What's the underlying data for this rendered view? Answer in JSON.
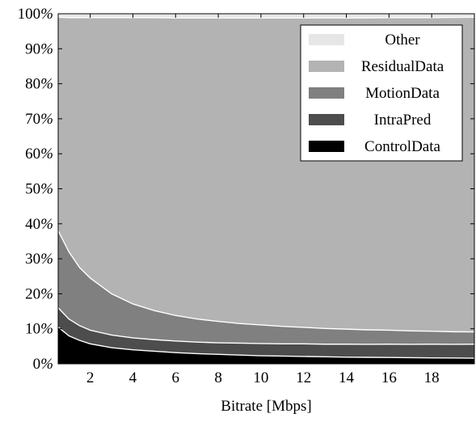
{
  "chart_data": {
    "type": "area",
    "stacked": true,
    "normalized_percent": true,
    "title": "",
    "xlabel": "Bitrate [Mbps]",
    "ylabel": "",
    "xlim": [
      0.5,
      20
    ],
    "ylim": [
      0,
      100
    ],
    "x_ticks": [
      2,
      4,
      6,
      8,
      10,
      12,
      14,
      16,
      18
    ],
    "y_ticks": [
      0,
      10,
      20,
      30,
      40,
      50,
      60,
      70,
      80,
      90,
      100
    ],
    "y_tick_suffix": "%",
    "grid": false,
    "legend_position": "top-right",
    "x": [
      0.5,
      1,
      1.5,
      2,
      3,
      4,
      5,
      6,
      7,
      8,
      9,
      10,
      11,
      12,
      13,
      14,
      15,
      16,
      17,
      18,
      19,
      20
    ],
    "series": [
      {
        "name": "ControlData",
        "color": "#000000",
        "values": [
          10.5,
          8.0,
          6.7,
          5.7,
          4.6,
          4.0,
          3.6,
          3.2,
          2.9,
          2.7,
          2.5,
          2.3,
          2.2,
          2.1,
          2.0,
          1.9,
          1.85,
          1.8,
          1.75,
          1.7,
          1.65,
          1.6
        ]
      },
      {
        "name": "IntraPred",
        "color": "#4d4d4d",
        "values": [
          5.5,
          4.8,
          4.2,
          3.9,
          3.6,
          3.4,
          3.3,
          3.3,
          3.3,
          3.3,
          3.4,
          3.5,
          3.5,
          3.6,
          3.6,
          3.7,
          3.7,
          3.8,
          3.8,
          3.9,
          3.9,
          4.0
        ]
      },
      {
        "name": "MotionData",
        "color": "#808080",
        "values": [
          22.0,
          19.2,
          16.6,
          14.9,
          11.8,
          9.7,
          8.3,
          7.3,
          6.6,
          6.1,
          5.6,
          5.3,
          5.0,
          4.7,
          4.5,
          4.3,
          4.15,
          4.0,
          3.85,
          3.7,
          3.6,
          3.5
        ]
      },
      {
        "name": "ResidualData",
        "color": "#b3b3b3",
        "values": [
          61.0,
          66.9,
          71.4,
          74.4,
          78.9,
          81.8,
          83.7,
          85.0,
          86.0,
          86.7,
          87.3,
          87.7,
          88.1,
          88.4,
          88.7,
          88.9,
          89.1,
          89.3,
          89.5,
          89.6,
          89.8,
          89.9
        ]
      },
      {
        "name": "Other",
        "color": "#e6e6e6",
        "values": [
          1.0,
          1.1,
          1.1,
          1.1,
          1.1,
          1.1,
          1.1,
          1.2,
          1.2,
          1.2,
          1.2,
          1.2,
          1.2,
          1.2,
          1.2,
          1.2,
          1.2,
          1.1,
          1.1,
          1.1,
          1.05,
          1.0
        ]
      }
    ],
    "legend_order": [
      "Other",
      "ResidualData",
      "MotionData",
      "IntraPred",
      "ControlData"
    ]
  }
}
